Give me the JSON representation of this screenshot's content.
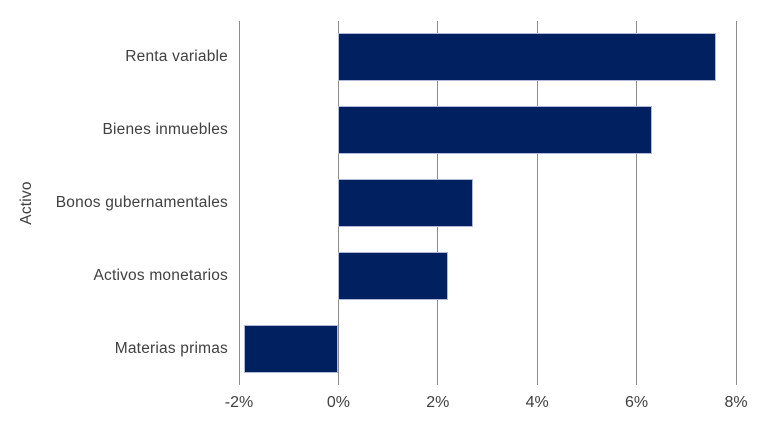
{
  "chart_data": {
    "type": "bar",
    "orientation": "horizontal",
    "title": "",
    "xlabel": "",
    "ylabel": "Activo",
    "categories": [
      "Renta variable",
      "Bienes inmuebles",
      "Bonos gubernamentales",
      "Activos monetarios",
      "Materias primas"
    ],
    "values": [
      7.6,
      6.3,
      2.7,
      2.2,
      -1.9
    ],
    "xlim": [
      -2,
      8
    ],
    "x_tick_values": [
      -2,
      0,
      2,
      4,
      6,
      8
    ],
    "x_tick_labels": [
      "-2%",
      "0%",
      "2%",
      "4%",
      "6%",
      "8%"
    ],
    "grid": "vertical-only",
    "legend": "none",
    "bar_color": "#002060",
    "bar_border_color": "#b0b9d8",
    "gridline_color": "#8c8c8c",
    "text_color": "#404040",
    "background_color": "#ffffff"
  }
}
